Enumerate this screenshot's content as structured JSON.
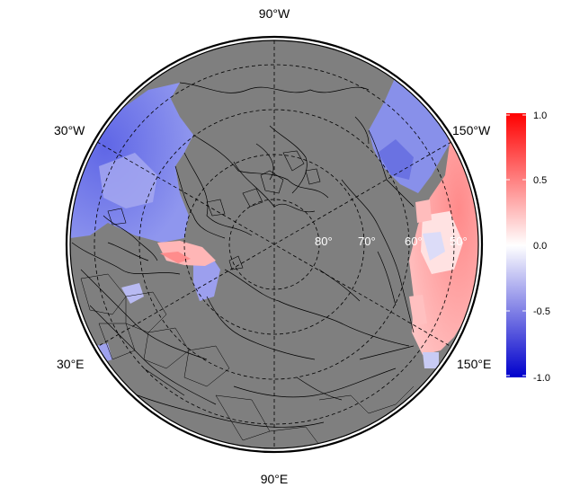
{
  "map": {
    "projection": "north-polar-stereographic",
    "longitude_labels": [
      "90°W",
      "30°W",
      "150°W",
      "30°E",
      "150°E",
      "90°E"
    ],
    "latitude_labels": [
      "80°",
      "70°",
      "60°",
      "50°"
    ],
    "land_color": "#7f7f7f",
    "ocean_field_colors": {
      "negative": "#0000cc",
      "neutral": "#ffffff",
      "positive": "#ff0000"
    }
  },
  "colorbar": {
    "tick_labels": [
      "1.0",
      "0.5",
      "0.0",
      "-0.5",
      "-1.0"
    ],
    "range": [
      -1.0,
      1.0
    ],
    "colors": {
      "high": "#ff0000",
      "mid": "#ffffff",
      "low": "#0000cc"
    }
  }
}
